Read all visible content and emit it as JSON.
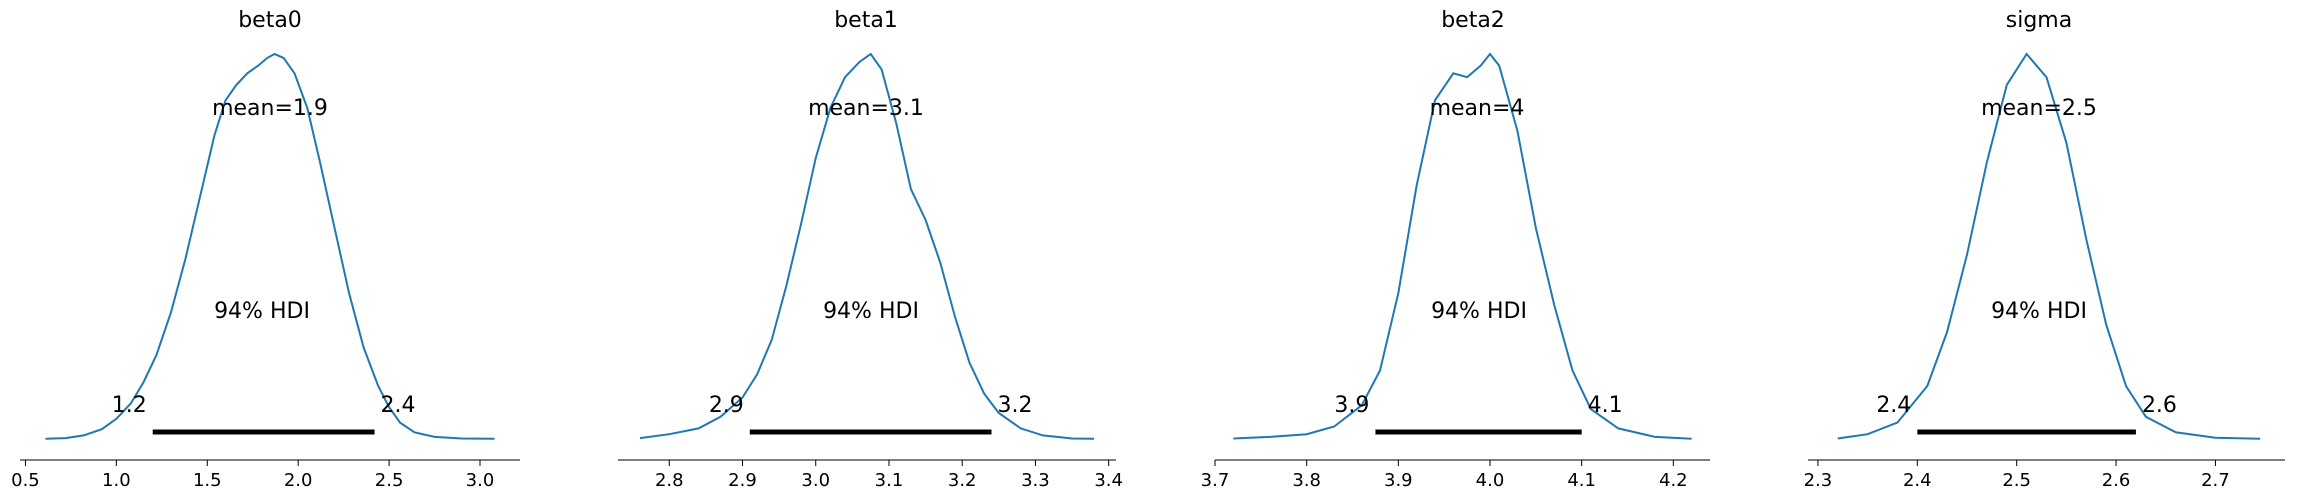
{
  "chart_data": [
    {
      "type": "line",
      "title": "beta0",
      "mean_label": "mean=1.9",
      "hdi_label": "94% HDI",
      "hdi_low_label": "1.2",
      "hdi_high_label": "2.4",
      "hdi": [
        1.2,
        2.42
      ],
      "xlim": [
        0.47,
        3.22
      ],
      "ylim": [
        0,
        1.08
      ],
      "xticks": [
        0.5,
        1.0,
        1.5,
        2.0,
        2.5,
        3.0
      ],
      "xtick_labels": [
        "0.5",
        "1.0",
        "1.5",
        "2.0",
        "2.5",
        "3.0"
      ],
      "density": {
        "x": [
          0.61,
          0.72,
          0.82,
          0.92,
          1.0,
          1.08,
          1.15,
          1.22,
          1.3,
          1.38,
          1.46,
          1.54,
          1.6,
          1.66,
          1.72,
          1.78,
          1.83,
          1.87,
          1.92,
          1.98,
          2.05,
          2.12,
          2.2,
          2.28,
          2.36,
          2.44,
          2.5,
          2.56,
          2.64,
          2.75,
          2.9,
          3.08
        ],
        "y": [
          0.003,
          0.005,
          0.012,
          0.028,
          0.055,
          0.095,
          0.15,
          0.22,
          0.33,
          0.47,
          0.63,
          0.79,
          0.88,
          0.92,
          0.95,
          0.97,
          0.99,
          1.0,
          0.99,
          0.95,
          0.86,
          0.72,
          0.55,
          0.38,
          0.24,
          0.14,
          0.085,
          0.045,
          0.02,
          0.008,
          0.004,
          0.003
        ]
      }
    },
    {
      "type": "line",
      "title": "beta1",
      "mean_label": "mean=3.1",
      "hdi_label": "94% HDI",
      "hdi_low_label": "2.9",
      "hdi_high_label": "3.2",
      "hdi": [
        2.91,
        3.24
      ],
      "xlim": [
        2.73,
        3.41
      ],
      "ylim": [
        0,
        1.08
      ],
      "xticks": [
        2.8,
        2.9,
        3.0,
        3.1,
        3.2,
        3.3,
        3.4
      ],
      "xtick_labels": [
        "2.8",
        "2.9",
        "3.0",
        "3.1",
        "3.2",
        "3.3",
        "3.4"
      ],
      "density": {
        "x": [
          2.76,
          2.8,
          2.84,
          2.87,
          2.9,
          2.92,
          2.94,
          2.96,
          2.98,
          3.0,
          3.02,
          3.04,
          3.06,
          3.075,
          3.09,
          3.11,
          3.13,
          3.15,
          3.17,
          3.19,
          3.21,
          3.23,
          3.25,
          3.28,
          3.31,
          3.35,
          3.38
        ],
        "y": [
          0.005,
          0.015,
          0.03,
          0.06,
          0.11,
          0.17,
          0.26,
          0.4,
          0.56,
          0.73,
          0.86,
          0.94,
          0.98,
          1.0,
          0.96,
          0.82,
          0.65,
          0.57,
          0.46,
          0.32,
          0.2,
          0.12,
          0.07,
          0.03,
          0.012,
          0.004,
          0.003
        ]
      }
    },
    {
      "type": "line",
      "title": "beta2",
      "mean_label": "mean=4",
      "hdi_label": "94% HDI",
      "hdi_low_label": "3.9",
      "hdi_high_label": "4.1",
      "hdi": [
        3.875,
        4.1
      ],
      "xlim": [
        3.7,
        4.24
      ],
      "ylim": [
        0,
        1.08
      ],
      "xticks": [
        3.7,
        3.8,
        3.9,
        4.0,
        4.1,
        4.2
      ],
      "xtick_labels": [
        "3.7",
        "3.8",
        "3.9",
        "4.0",
        "4.1",
        "4.2"
      ],
      "density": {
        "x": [
          3.72,
          3.76,
          3.8,
          3.83,
          3.86,
          3.88,
          3.9,
          3.92,
          3.94,
          3.96,
          3.975,
          3.99,
          4.0,
          4.01,
          4.03,
          4.05,
          4.07,
          4.09,
          4.11,
          4.14,
          4.18,
          4.22
        ],
        "y": [
          0.004,
          0.008,
          0.015,
          0.035,
          0.09,
          0.18,
          0.38,
          0.66,
          0.88,
          0.95,
          0.94,
          0.97,
          1.0,
          0.97,
          0.8,
          0.55,
          0.35,
          0.18,
          0.08,
          0.03,
          0.008,
          0.003
        ]
      }
    },
    {
      "type": "line",
      "title": "sigma",
      "mean_label": "mean=2.5",
      "hdi_label": "94% HDI",
      "hdi_low_label": "2.4",
      "hdi_high_label": "2.6",
      "hdi": [
        2.4,
        2.62
      ],
      "xlim": [
        2.29,
        2.77
      ],
      "ylim": [
        0,
        1.08
      ],
      "xticks": [
        2.3,
        2.4,
        2.5,
        2.6,
        2.7
      ],
      "xtick_labels": [
        "2.3",
        "2.4",
        "2.5",
        "2.6",
        "2.7"
      ],
      "density": {
        "x": [
          2.32,
          2.35,
          2.38,
          2.41,
          2.43,
          2.45,
          2.47,
          2.49,
          2.51,
          2.53,
          2.55,
          2.57,
          2.59,
          2.61,
          2.63,
          2.66,
          2.7,
          2.745
        ],
        "y": [
          0.004,
          0.015,
          0.045,
          0.14,
          0.28,
          0.48,
          0.72,
          0.92,
          1.0,
          0.94,
          0.77,
          0.52,
          0.3,
          0.14,
          0.06,
          0.02,
          0.006,
          0.003
        ]
      }
    }
  ]
}
